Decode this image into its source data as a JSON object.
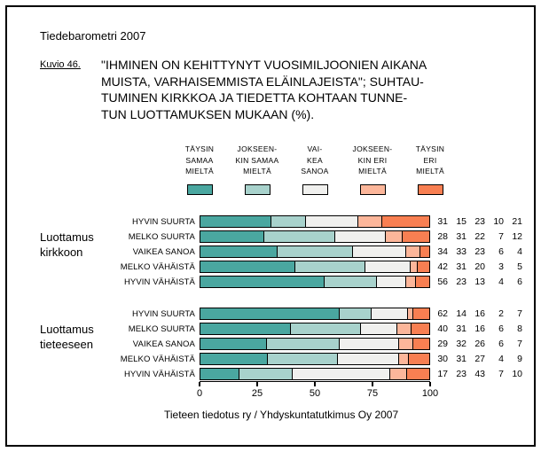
{
  "header": {
    "brand": "Tiedebarometri 2007",
    "figure_label": "Kuvio 46.",
    "title_lines": [
      "\"IHMINEN ON KEHITTYNYT VUOSIMILJOONIEN AIKANA",
      "MUISTA, VARHAISEMMISTA ELÄINLAJEISTA\"; SUHTAU-",
      "TUMINEN KIRKKOA JA TIEDETTA KOHTAAN TUNNE-",
      "TUN LUOTTAMUKSEN MUKAAN (%)."
    ]
  },
  "chart_data": {
    "type": "bar",
    "stacked": true,
    "orientation": "horizontal",
    "xlim": [
      0,
      100
    ],
    "x_ticks": [
      0,
      25,
      50,
      75,
      100
    ],
    "grid": false,
    "legend_position": "top",
    "series": [
      {
        "name": "TÄYSIN SAMAA MIELTÄ",
        "legend_lines": [
          "TÄYSIN",
          "SAMAA",
          "MIELTÄ"
        ],
        "color": "#4aa7a0"
      },
      {
        "name": "JOKSEENKIN SAMAA MIELTÄ",
        "legend_lines": [
          "JOKSEEN-",
          "KIN SAMAA",
          "MIELTÄ"
        ],
        "color": "#a8d2cc"
      },
      {
        "name": "VAIKEA SANOA",
        "legend_lines": [
          "VAI-",
          "KEA",
          "SANOA"
        ],
        "color": "#f0f0ee"
      },
      {
        "name": "JOKSEENKIN ERI MIELTÄ",
        "legend_lines": [
          "JOKSEEN-",
          "KIN ERI",
          "MIELTÄ"
        ],
        "color": "#fcb69a"
      },
      {
        "name": "TÄYSIN ERI MIELTÄ",
        "legend_lines": [
          "TÄYSIN",
          "ERI",
          "MIELTÄ"
        ],
        "color": "#f87f52"
      }
    ],
    "groups": [
      {
        "label_lines": [
          "Luottamus",
          "kirkkoon"
        ],
        "rows": [
          {
            "label": "HYVIN SUURTA",
            "values": [
              31,
              15,
              23,
              10,
              21
            ]
          },
          {
            "label": "MELKO SUURTA",
            "values": [
              28,
              31,
              22,
              7,
              12
            ]
          },
          {
            "label": "VAIKEA SANOA",
            "values": [
              34,
              33,
              23,
              6,
              4
            ]
          },
          {
            "label": "MELKO VÄHÄISTÄ",
            "values": [
              42,
              31,
              20,
              3,
              5
            ]
          },
          {
            "label": "HYVIN VÄHÄISTÄ",
            "values": [
              56,
              23,
              13,
              4,
              6
            ]
          }
        ]
      },
      {
        "label_lines": [
          "Luottamus",
          "tieteeseen"
        ],
        "rows": [
          {
            "label": "HYVIN SUURTA",
            "values": [
              62,
              14,
              16,
              2,
              7
            ]
          },
          {
            "label": "MELKO SUURTA",
            "values": [
              40,
              31,
              16,
              6,
              8
            ]
          },
          {
            "label": "VAIKEA SANOA",
            "values": [
              29,
              32,
              26,
              6,
              7
            ]
          },
          {
            "label": "MELKO VÄHÄISTÄ",
            "values": [
              30,
              31,
              27,
              4,
              9
            ]
          },
          {
            "label": "HYVIN VÄHÄISTÄ",
            "values": [
              17,
              23,
              43,
              7,
              10
            ]
          }
        ]
      }
    ]
  },
  "footer": {
    "source": "Tieteen tiedotus ry / Yhdyskuntatutkimus Oy 2007"
  }
}
